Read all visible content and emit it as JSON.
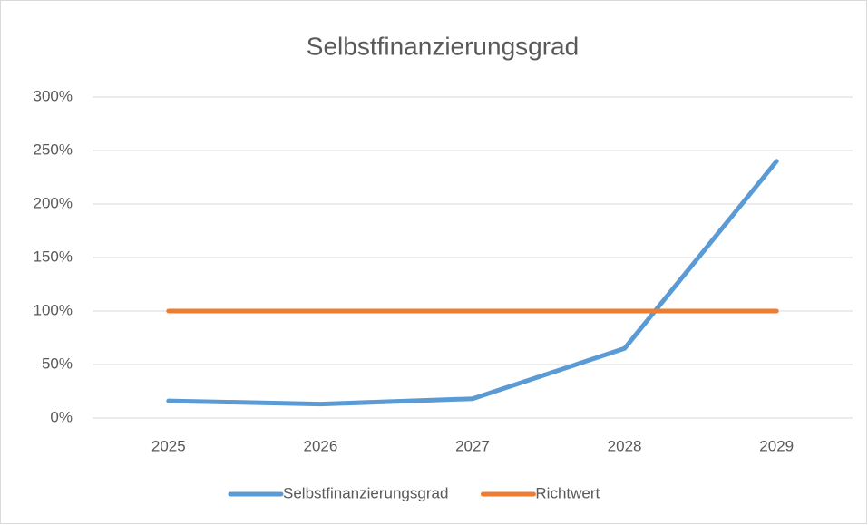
{
  "chart_data": {
    "type": "line",
    "title": "Selbstfinanzierungsgrad",
    "categories": [
      "2025",
      "2026",
      "2027",
      "2028",
      "2029"
    ],
    "series": [
      {
        "name": "Selbstfinanzierungsgrad",
        "color": "#5b9bd5",
        "values": [
          16,
          13,
          18,
          65,
          240
        ]
      },
      {
        "name": "Richtwert",
        "color": "#ed7d31",
        "values": [
          100,
          100,
          100,
          100,
          100
        ]
      }
    ],
    "ylim": [
      0,
      300
    ],
    "yticks": [
      {
        "value": 0,
        "label": "0%"
      },
      {
        "value": 50,
        "label": "50%"
      },
      {
        "value": 100,
        "label": "100%"
      },
      {
        "value": 150,
        "label": "150%"
      },
      {
        "value": 200,
        "label": "200%"
      },
      {
        "value": 250,
        "label": "250%"
      },
      {
        "value": 300,
        "label": "300%"
      }
    ],
    "grid": true,
    "legend": "bottom"
  }
}
